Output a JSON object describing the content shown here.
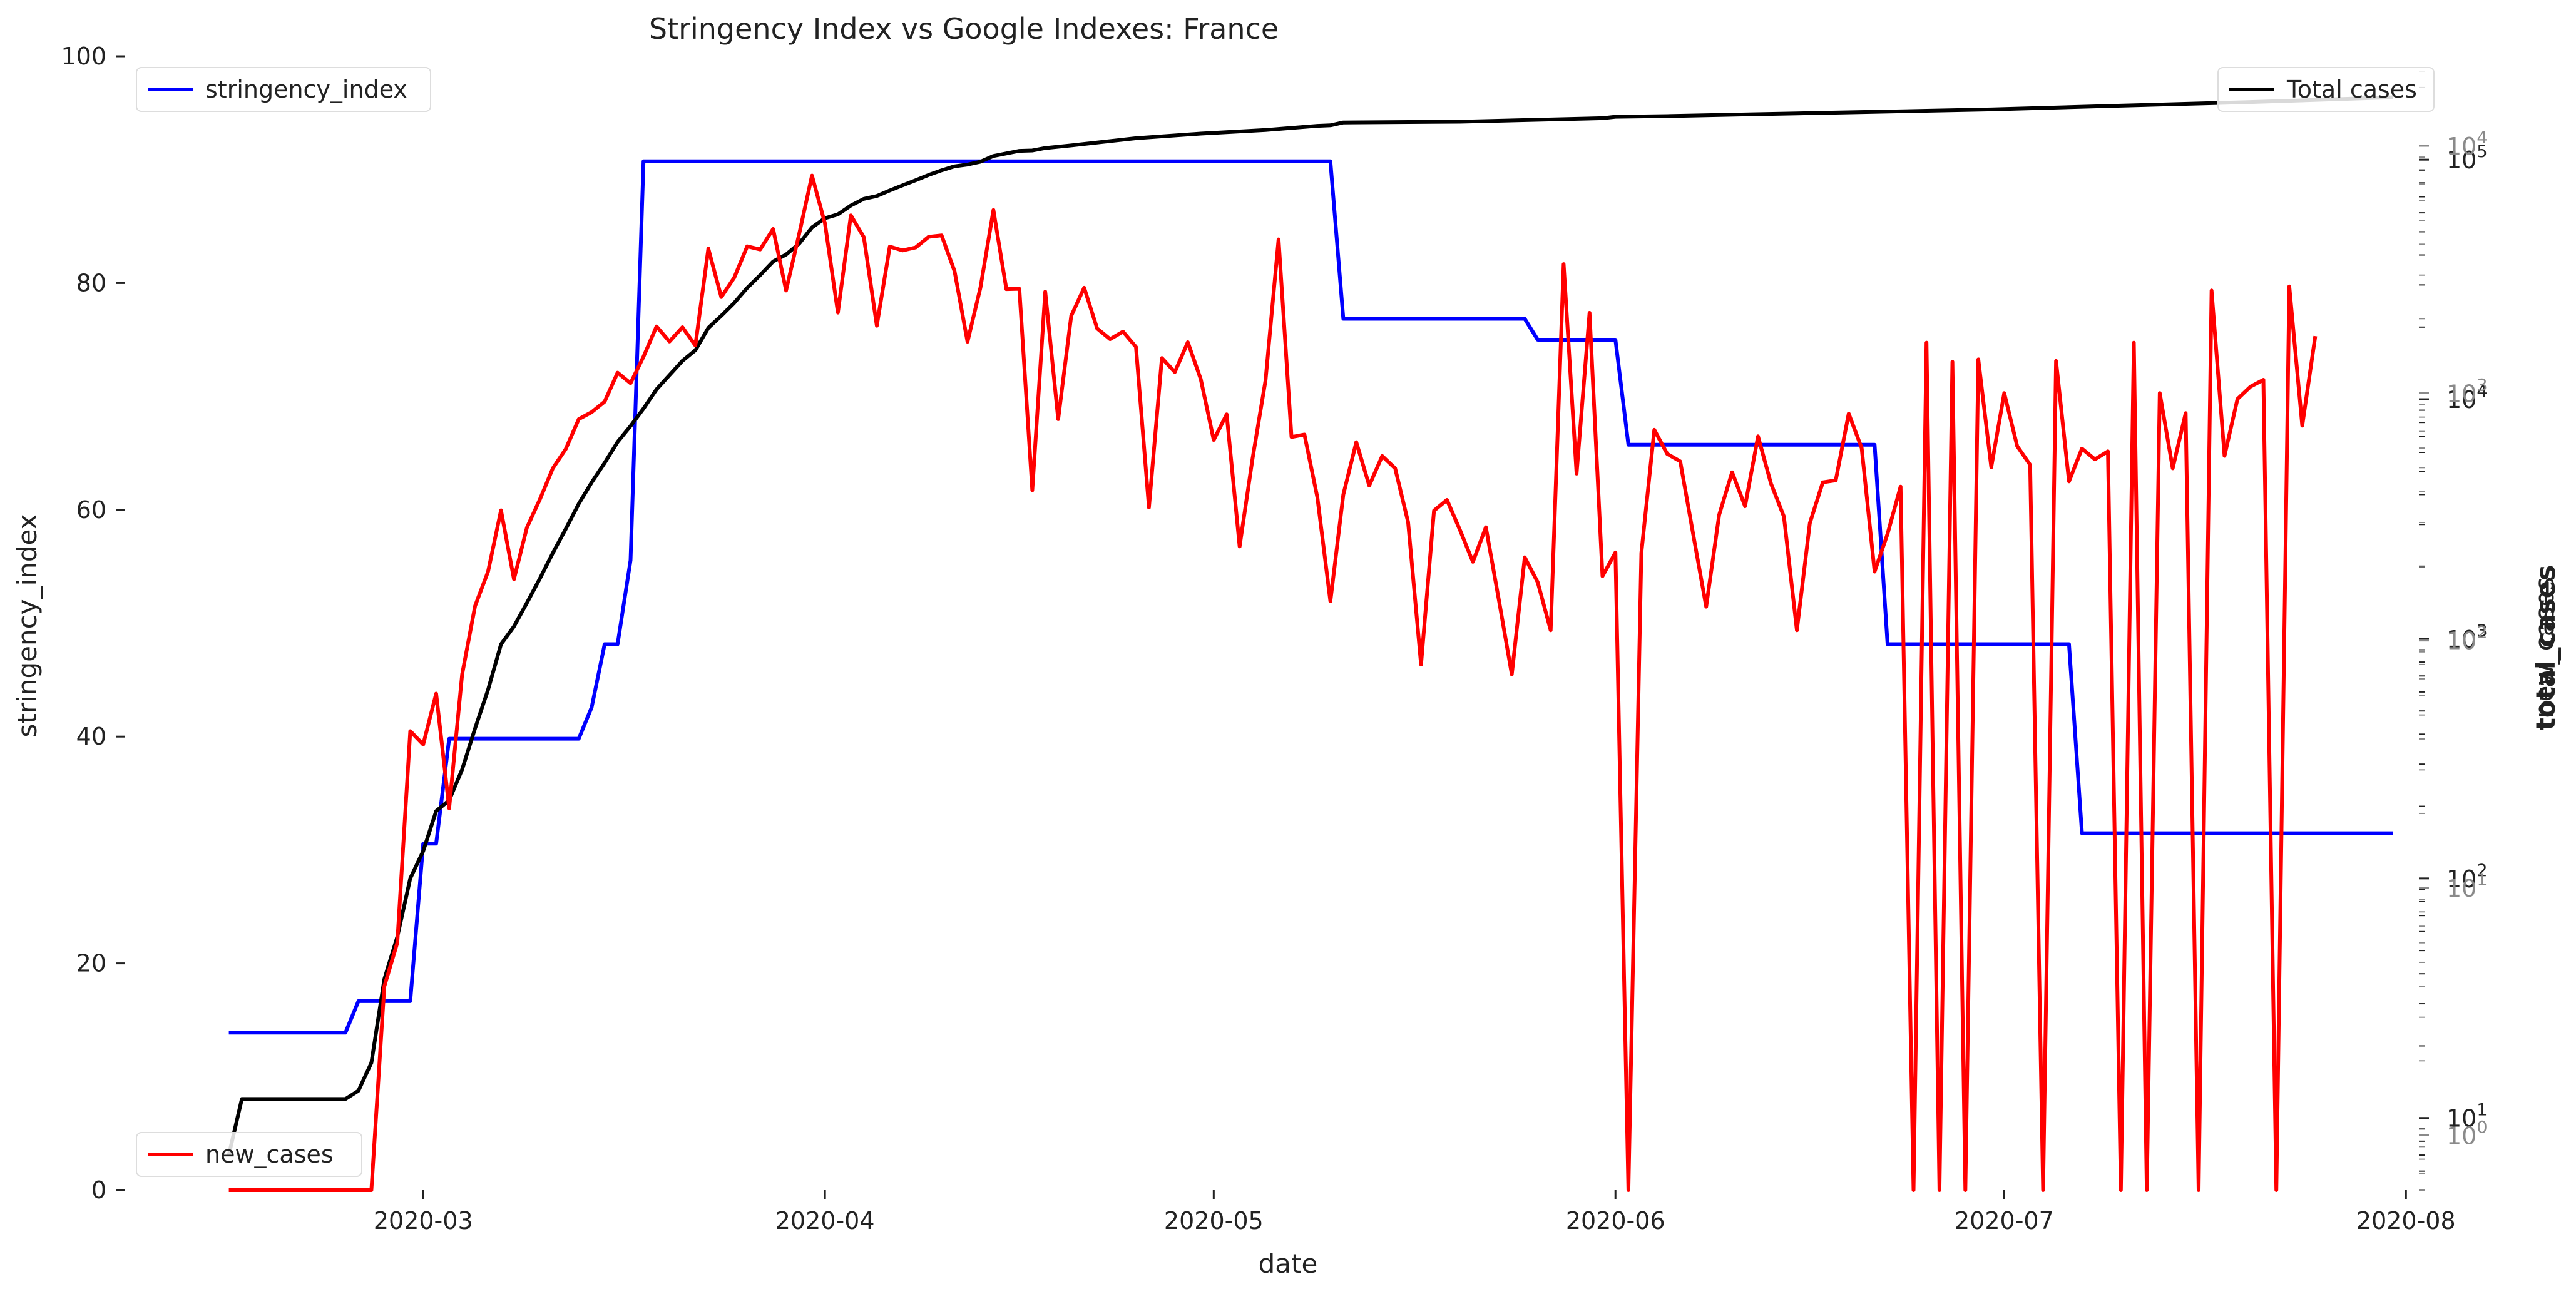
{
  "chart_data": {
    "type": "line",
    "title": "Stringency Index vs Google Indexes:  France",
    "xlabel": "date",
    "ylabel_left": "stringency_index",
    "ylabel_right_overlapped": [
      "total_cases",
      "new_cases"
    ],
    "x_ticks": [
      "2020-03",
      "2020-04",
      "2020-05",
      "2020-06",
      "2020-07",
      "2020-08"
    ],
    "x_range": [
      "2020-02-07",
      "2020-08-02"
    ],
    "left_axis": {
      "ylim": [
        0,
        100
      ],
      "ticks": [
        "0",
        "20",
        "40",
        "60",
        "80",
        "100"
      ]
    },
    "right_axis_total_cases": {
      "scale": "log",
      "ylim": [
        5,
        270000
      ],
      "ticks": [
        {
          "value": 10,
          "label": "10",
          "exp": "1"
        },
        {
          "value": 100,
          "label": "10",
          "exp": "2"
        },
        {
          "value": 1000,
          "label": "10",
          "exp": "3"
        },
        {
          "value": 10000,
          "label": "10",
          "exp": "4"
        },
        {
          "value": 100000,
          "label": "10",
          "exp": "5"
        }
      ]
    },
    "right_axis_new_cases": {
      "scale": "log",
      "ylim": [
        0.6,
        23000
      ],
      "ticks": [
        {
          "value": 1,
          "label": "10",
          "exp": "0"
        },
        {
          "value": 10,
          "label": "10",
          "exp": "1"
        },
        {
          "value": 100,
          "label": "10",
          "exp": "2"
        },
        {
          "value": 1000,
          "label": "10",
          "exp": "3"
        },
        {
          "value": 10000,
          "label": "10",
          "exp": "4"
        }
      ]
    },
    "grid": false,
    "legend": [
      {
        "name": "stringency_index",
        "placement": "upper-left"
      },
      {
        "name": "Total cases",
        "placement": "upper-right"
      },
      {
        "name": "new_cases",
        "placement": "lower-left"
      }
    ],
    "series": [
      {
        "name": "stringency_index",
        "axis": "left",
        "color": "#0000ff",
        "points": [
          [
            "2020-02-15",
            13.89
          ],
          [
            "2020-02-24",
            13.89
          ],
          [
            "2020-02-25",
            16.67
          ],
          [
            "2020-02-29",
            16.67
          ],
          [
            "2020-03-01",
            30.56
          ],
          [
            "2020-03-02",
            30.56
          ],
          [
            "2020-03-03",
            39.81
          ],
          [
            "2020-03-13",
            39.81
          ],
          [
            "2020-03-14",
            42.59
          ],
          [
            "2020-03-15",
            48.15
          ],
          [
            "2020-03-16",
            48.15
          ],
          [
            "2020-03-17",
            55.56
          ],
          [
            "2020-03-18",
            90.74
          ],
          [
            "2020-05-10",
            90.74
          ],
          [
            "2020-05-11",
            76.85
          ],
          [
            "2020-05-25",
            76.85
          ],
          [
            "2020-05-26",
            75.0
          ],
          [
            "2020-06-01",
            75.0
          ],
          [
            "2020-06-02",
            65.74
          ],
          [
            "2020-06-21",
            65.74
          ],
          [
            "2020-06-22",
            48.15
          ],
          [
            "2020-07-06",
            48.15
          ],
          [
            "2020-07-07",
            31.48
          ],
          [
            "2020-07-31",
            31.48
          ]
        ]
      },
      {
        "name": "Total cases",
        "axis": "right_total",
        "color": "#000000",
        "points": [
          [
            "2020-02-15",
            7
          ],
          [
            "2020-02-16",
            12
          ],
          [
            "2020-02-24",
            12
          ],
          [
            "2020-02-25",
            13
          ],
          [
            "2020-02-26",
            17
          ],
          [
            "2020-02-27",
            38
          ],
          [
            "2020-02-28",
            57
          ],
          [
            "2020-02-29",
            100
          ],
          [
            "2020-03-01",
            130
          ],
          [
            "2020-03-02",
            191
          ],
          [
            "2020-03-03",
            212
          ],
          [
            "2020-03-04",
            285
          ],
          [
            "2020-03-05",
            423
          ],
          [
            "2020-03-06",
            613
          ],
          [
            "2020-03-07",
            949
          ],
          [
            "2020-03-08",
            1126
          ],
          [
            "2020-03-09",
            1412
          ],
          [
            "2020-03-10",
            1784
          ],
          [
            "2020-03-11",
            2281
          ],
          [
            "2020-03-12",
            2876
          ],
          [
            "2020-03-13",
            3661
          ],
          [
            "2020-03-14",
            4499
          ],
          [
            "2020-03-15",
            5423
          ],
          [
            "2020-03-16",
            6633
          ],
          [
            "2020-03-17",
            7730
          ],
          [
            "2020-03-18",
            9134
          ],
          [
            "2020-03-19",
            10995
          ],
          [
            "2020-03-20",
            12612
          ],
          [
            "2020-03-21",
            14459
          ],
          [
            "2020-03-22",
            16018
          ],
          [
            "2020-03-23",
            19856
          ],
          [
            "2020-03-24",
            22302
          ],
          [
            "2020-03-25",
            25233
          ],
          [
            "2020-03-26",
            29155
          ],
          [
            "2020-03-27",
            32964
          ],
          [
            "2020-03-28",
            37575
          ],
          [
            "2020-03-29",
            40174
          ],
          [
            "2020-03-30",
            44550
          ],
          [
            "2020-03-31",
            52128
          ],
          [
            "2020-04-01",
            56989
          ],
          [
            "2020-04-02",
            59105
          ],
          [
            "2020-04-03",
            64338
          ],
          [
            "2020-04-04",
            68605
          ],
          [
            "2020-04-05",
            70478
          ],
          [
            "2020-04-06",
            74390
          ],
          [
            "2020-04-07",
            78167
          ],
          [
            "2020-04-08",
            82048
          ],
          [
            "2020-04-09",
            86334
          ],
          [
            "2020-04-10",
            90276
          ],
          [
            "2020-04-11",
            93790
          ],
          [
            "2020-04-12",
            95403
          ],
          [
            "2020-04-13",
            98076
          ],
          [
            "2020-04-14",
            103573
          ],
          [
            "2020-04-15",
            106206
          ],
          [
            "2020-04-16",
            108847
          ],
          [
            "2020-04-17",
            109252
          ],
          [
            "2020-04-18",
            111821
          ],
          [
            "2020-04-20",
            114657
          ],
          [
            "2020-04-25",
            122875
          ],
          [
            "2020-04-30",
            128442
          ],
          [
            "2020-05-05",
            132967
          ],
          [
            "2020-05-09",
            138421
          ],
          [
            "2020-05-10",
            139063
          ],
          [
            "2020-05-11",
            143000
          ],
          [
            "2020-05-20",
            144000
          ],
          [
            "2020-05-31",
            149000
          ],
          [
            "2020-06-01",
            151000
          ],
          [
            "2020-06-05",
            152000
          ],
          [
            "2020-06-15",
            156000
          ],
          [
            "2020-06-30",
            162000
          ],
          [
            "2020-07-10",
            168000
          ],
          [
            "2020-07-20",
            174000
          ],
          [
            "2020-07-31",
            182000
          ]
        ]
      },
      {
        "name": "new_cases",
        "axis": "right_new",
        "color": "#ff0000",
        "points": [
          [
            "2020-02-15",
            0
          ],
          [
            "2020-02-26",
            0
          ],
          [
            "2020-02-27",
            4
          ],
          [
            "2020-02-28",
            6
          ],
          [
            "2020-02-29",
            43
          ],
          [
            "2020-03-01",
            38
          ],
          [
            "2020-03-02",
            61
          ],
          [
            "2020-03-03",
            21
          ],
          [
            "2020-03-04",
            73
          ],
          [
            "2020-03-05",
            138
          ],
          [
            "2020-03-06",
            190
          ],
          [
            "2020-03-07",
            336
          ],
          [
            "2020-03-08",
            177
          ],
          [
            "2020-03-09",
            286
          ],
          [
            "2020-03-10",
            372
          ],
          [
            "2020-03-11",
            497
          ],
          [
            "2020-03-12",
            595
          ],
          [
            "2020-03-13",
            785
          ],
          [
            "2020-03-14",
            838
          ],
          [
            "2020-03-15",
            924
          ],
          [
            "2020-03-16",
            1210
          ],
          [
            "2020-03-17",
            1097
          ],
          [
            "2020-03-18",
            1404
          ],
          [
            "2020-03-19",
            1861
          ],
          [
            "2020-03-20",
            1617
          ],
          [
            "2020-03-21",
            1847
          ],
          [
            "2020-03-22",
            1559
          ],
          [
            "2020-03-23",
            3838
          ],
          [
            "2020-03-24",
            2446
          ],
          [
            "2020-03-25",
            2931
          ],
          [
            "2020-03-26",
            3922
          ],
          [
            "2020-03-27",
            3809
          ],
          [
            "2020-03-28",
            4611
          ],
          [
            "2020-03-29",
            2599
          ],
          [
            "2020-03-30",
            4376
          ],
          [
            "2020-03-31",
            7578
          ],
          [
            "2020-04-01",
            4861
          ],
          [
            "2020-04-02",
            2116
          ],
          [
            "2020-04-03",
            5233
          ],
          [
            "2020-04-04",
            4267
          ],
          [
            "2020-04-05",
            1873
          ],
          [
            "2020-04-06",
            3912
          ],
          [
            "2020-04-07",
            3777
          ],
          [
            "2020-04-08",
            3881
          ],
          [
            "2020-04-09",
            4286
          ],
          [
            "2020-04-10",
            4342
          ],
          [
            "2020-04-11",
            3114
          ],
          [
            "2020-04-12",
            1613
          ],
          [
            "2020-04-13",
            2673
          ],
          [
            "2020-04-14",
            5497
          ],
          [
            "2020-04-15",
            2633
          ],
          [
            "2020-04-16",
            2641
          ],
          [
            "2020-04-17",
            405
          ],
          [
            "2020-04-18",
            2569
          ],
          [
            "2020-04-19",
            785
          ],
          [
            "2020-04-20",
            2051
          ],
          [
            "2020-04-21",
            2667
          ],
          [
            "2020-04-22",
            1827
          ],
          [
            "2020-04-23",
            1653
          ],
          [
            "2020-04-24",
            1773
          ],
          [
            "2020-04-25",
            1537
          ],
          [
            "2020-04-26",
            345
          ],
          [
            "2020-04-27",
            1386
          ],
          [
            "2020-04-28",
            1217
          ],
          [
            "2020-04-29",
            1607
          ],
          [
            "2020-04-30",
            1139
          ],
          [
            "2020-05-01",
            647
          ],
          [
            "2020-05-02",
            821
          ],
          [
            "2020-05-03",
            240
          ],
          [
            "2020-05-04",
            545
          ],
          [
            "2020-05-05",
            1126
          ],
          [
            "2020-05-06",
            4183
          ],
          [
            "2020-05-07",
            665
          ],
          [
            "2020-05-08",
            680
          ],
          [
            "2020-05-09",
            378
          ],
          [
            "2020-05-10",
            144
          ],
          [
            "2020-05-11",
            389
          ],
          [
            "2020-05-12",
            634
          ],
          [
            "2020-05-13",
            423
          ],
          [
            "2020-05-14",
            557
          ],
          [
            "2020-05-15",
            497
          ],
          [
            "2020-05-16",
            301
          ],
          [
            "2020-05-17",
            80
          ],
          [
            "2020-05-18",
            335
          ],
          [
            "2020-05-19",
            370
          ],
          [
            "2020-05-20",
            280
          ],
          [
            "2020-05-21",
            208
          ],
          [
            "2020-05-22",
            287
          ],
          [
            "2020-05-23",
            146
          ],
          [
            "2020-05-24",
            73
          ],
          [
            "2020-05-25",
            217
          ],
          [
            "2020-05-26",
            172
          ],
          [
            "2020-05-27",
            110
          ],
          [
            "2020-05-28",
            3324
          ],
          [
            "2020-05-29",
            473
          ],
          [
            "2020-05-30",
            2112
          ],
          [
            "2020-05-31",
            182
          ],
          [
            "2020-06-01",
            227
          ],
          [
            "2020-06-02",
            0
          ],
          [
            "2020-06-03",
            226
          ],
          [
            "2020-06-04",
            711
          ],
          [
            "2020-06-05",
            568
          ],
          [
            "2020-06-06",
            530
          ],
          [
            "2020-06-07",
            268
          ],
          [
            "2020-06-08",
            137
          ],
          [
            "2020-06-09",
            322
          ],
          [
            "2020-06-10",
            479
          ],
          [
            "2020-06-11",
            349
          ],
          [
            "2020-06-12",
            669
          ],
          [
            "2020-06-13",
            431
          ],
          [
            "2020-06-14",
            317
          ],
          [
            "2020-06-15",
            110
          ],
          [
            "2020-06-16",
            298
          ],
          [
            "2020-06-17",
            436
          ],
          [
            "2020-06-18",
            444
          ],
          [
            "2020-06-19",
            826
          ],
          [
            "2020-06-20",
            600
          ],
          [
            "2020-06-21",
            190
          ],
          [
            "2020-06-22",
            270
          ],
          [
            "2020-06-23",
            419
          ],
          [
            "2020-06-24",
            0
          ],
          [
            "2020-06-25",
            1600
          ],
          [
            "2020-06-26",
            0
          ],
          [
            "2020-06-27",
            1340
          ],
          [
            "2020-06-28",
            0
          ],
          [
            "2020-06-29",
            1369
          ],
          [
            "2020-06-30",
            502
          ],
          [
            "2020-07-01",
            1000
          ],
          [
            "2020-07-02",
            611
          ],
          [
            "2020-07-03",
            513
          ],
          [
            "2020-07-04",
            0
          ],
          [
            "2020-07-05",
            1350
          ],
          [
            "2020-07-06",
            440
          ],
          [
            "2020-07-07",
            597
          ],
          [
            "2020-07-08",
            540
          ],
          [
            "2020-07-09",
            582
          ],
          [
            "2020-07-10",
            0
          ],
          [
            "2020-07-11",
            1600
          ],
          [
            "2020-07-12",
            0
          ],
          [
            "2020-07-13",
            1000
          ],
          [
            "2020-07-14",
            497
          ],
          [
            "2020-07-15",
            830
          ],
          [
            "2020-07-16",
            0
          ],
          [
            "2020-07-17",
            2600
          ],
          [
            "2020-07-18",
            558
          ],
          [
            "2020-07-19",
            947
          ],
          [
            "2020-07-20",
            1062
          ],
          [
            "2020-07-21",
            1132
          ],
          [
            "2020-07-22",
            0
          ],
          [
            "2020-07-23",
            2700
          ],
          [
            "2020-07-24",
            739
          ],
          [
            "2020-07-25",
            1700
          ]
        ]
      }
    ]
  }
}
